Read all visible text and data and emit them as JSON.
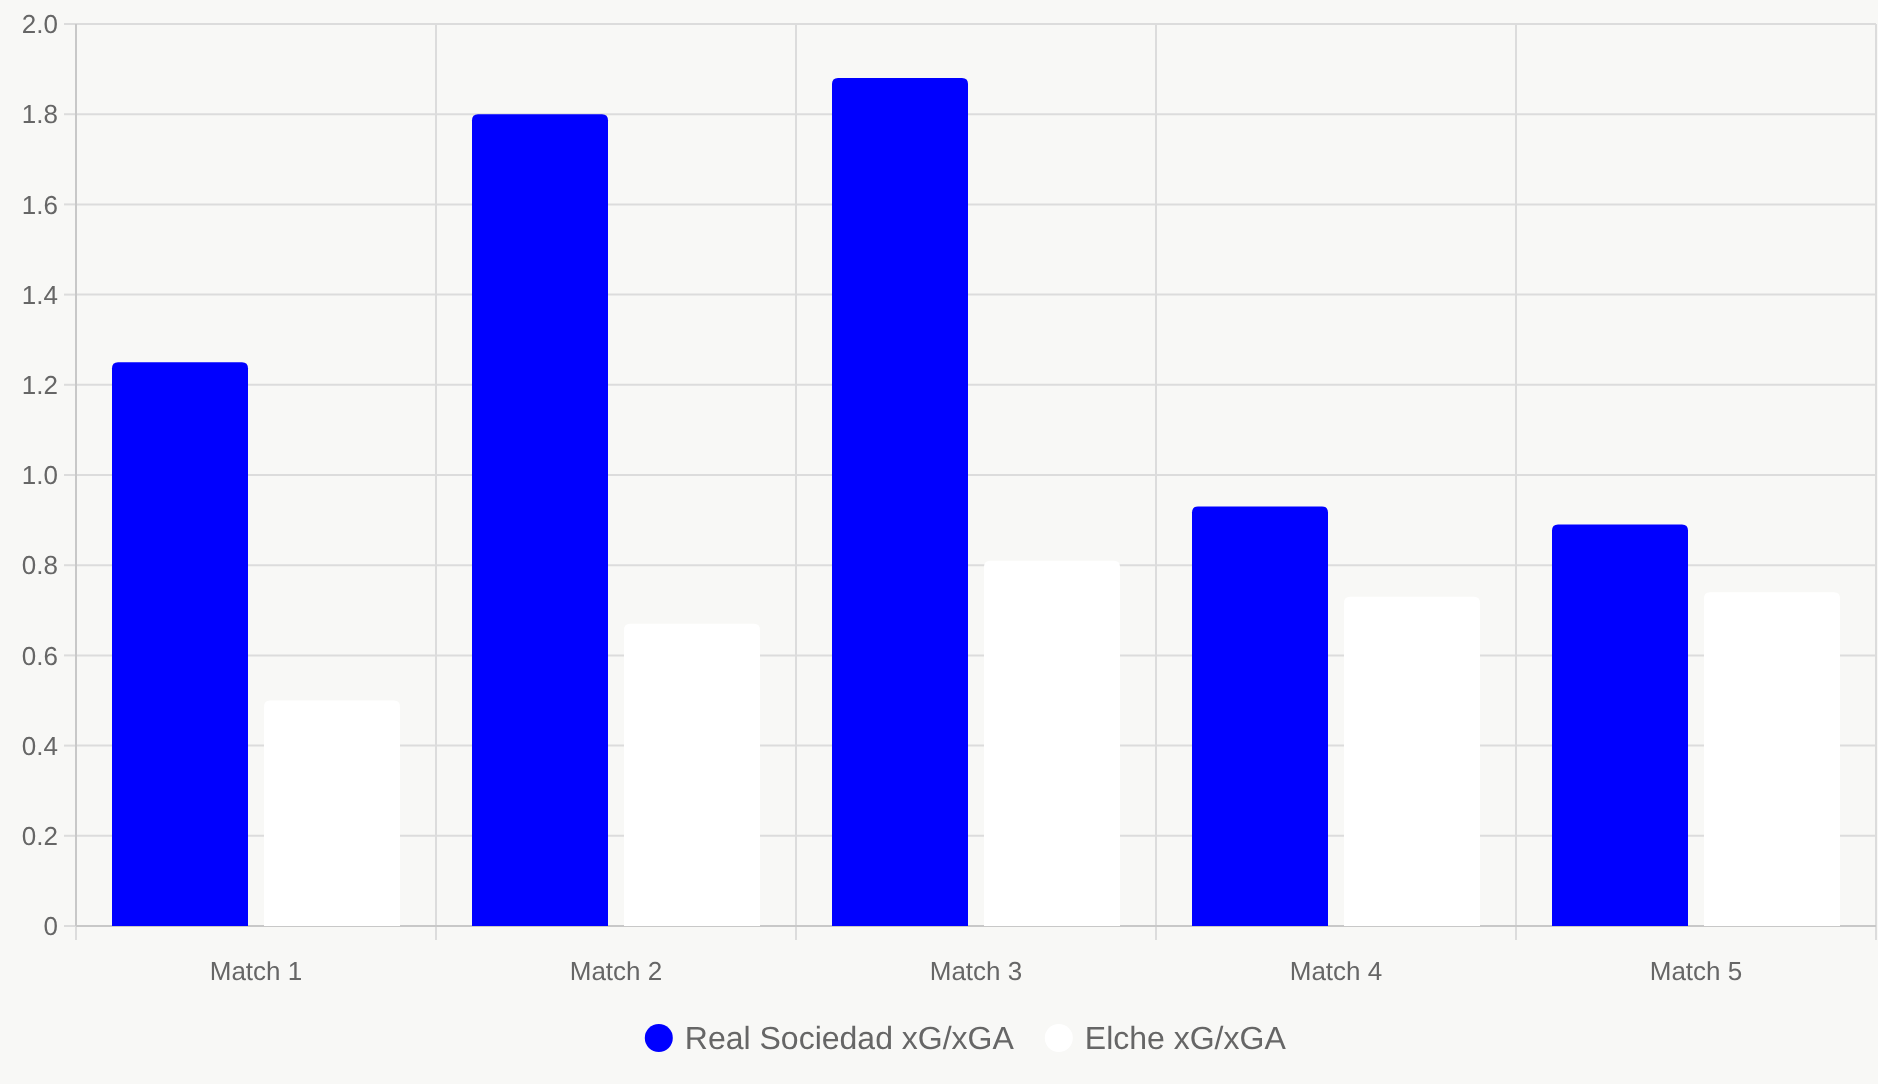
{
  "chart_data": {
    "type": "bar",
    "categories": [
      "Match 1",
      "Match 2",
      "Match 3",
      "Match 4",
      "Match 5"
    ],
    "series": [
      {
        "name": "Real Sociedad xG/xGA",
        "color": "#0000ff",
        "values": [
          1.25,
          1.8,
          1.88,
          0.93,
          0.89
        ]
      },
      {
        "name": "Elche xG/xGA",
        "color": "#ffffff",
        "values": [
          0.5,
          0.67,
          0.81,
          0.73,
          0.74
        ]
      }
    ],
    "ylim": [
      0,
      2
    ],
    "yticks": [
      {
        "value": 0,
        "label": "0"
      },
      {
        "value": 0.2,
        "label": "0.2"
      },
      {
        "value": 0.4,
        "label": "0.4"
      },
      {
        "value": 0.6,
        "label": "0.6"
      },
      {
        "value": 0.8,
        "label": "0.8"
      },
      {
        "value": 1,
        "label": "1.0"
      },
      {
        "value": 1.2,
        "label": "1.2"
      },
      {
        "value": 1.4,
        "label": "1.4"
      },
      {
        "value": 1.6,
        "label": "1.6"
      },
      {
        "value": 1.8,
        "label": "1.8"
      },
      {
        "value": 2,
        "label": "2.0"
      }
    ],
    "grid": true,
    "legend": "bottom"
  }
}
